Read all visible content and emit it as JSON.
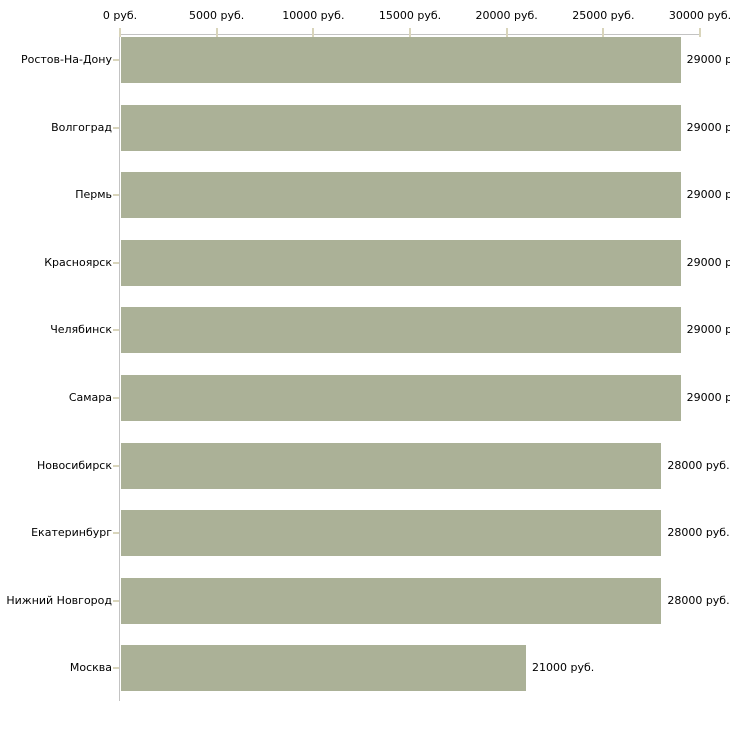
{
  "chart_data": {
    "type": "bar",
    "orientation": "horizontal",
    "title": "",
    "xlabel": "",
    "ylabel": "",
    "unit": "руб.",
    "xlim": [
      0,
      30000
    ],
    "grid": "off",
    "legend": "none",
    "categories": [
      "Ростов-На-Дону",
      "Волгоград",
      "Пермь",
      "Красноярск",
      "Челябинск",
      "Самара",
      "Новосибирск",
      "Екатеринбург",
      "Нижний Новгород",
      "Москва"
    ],
    "values": [
      29000,
      29000,
      29000,
      29000,
      29000,
      29000,
      28000,
      28000,
      28000,
      21000
    ],
    "value_labels": [
      "29000 р",
      "29000 р",
      "29000 р",
      "29000 р",
      "29000 р",
      "29000 р",
      "28000 руб.",
      "28000 руб.",
      "28000 руб.",
      "21000 руб."
    ],
    "x_ticks": [
      0,
      5000,
      10000,
      15000,
      20000,
      25000,
      30000
    ],
    "x_tick_labels": [
      "0 руб.",
      "5000 руб.",
      "10000 руб.",
      "15000 руб.",
      "20000 руб.",
      "25000 руб.",
      "30000 руб."
    ],
    "colors": {
      "bar": "#abb197",
      "axis_line": "#c3c3c3",
      "tick_mark": "#d9d5bb",
      "text": "#000000",
      "background": "#ffffff"
    }
  }
}
